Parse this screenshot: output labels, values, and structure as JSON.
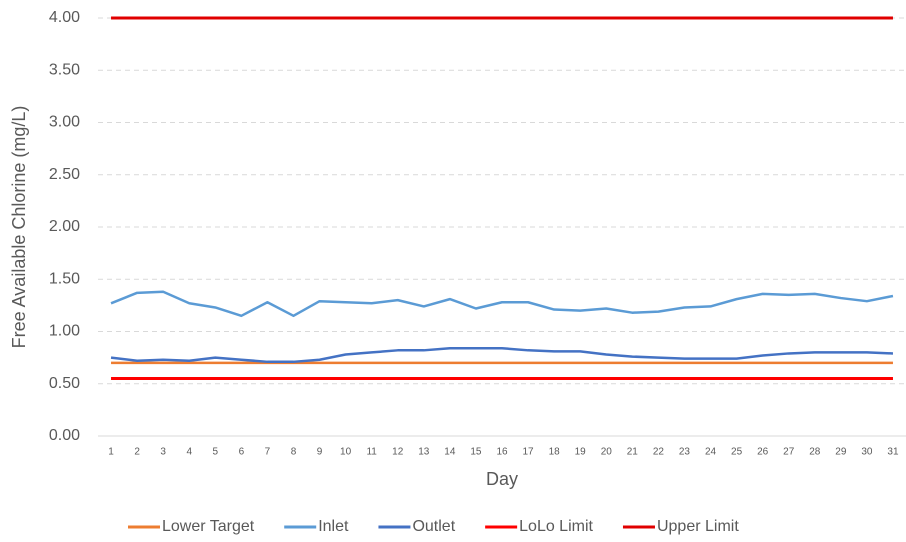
{
  "chart_data": {
    "type": "line",
    "ylabel": "Free Available Chlorine (mg/L)",
    "xlabel": "Day",
    "categories": [
      "1",
      "2",
      "3",
      "4",
      "5",
      "6",
      "7",
      "8",
      "9",
      "10",
      "11",
      "12",
      "13",
      "14",
      "15",
      "16",
      "17",
      "18",
      "19",
      "20",
      "21",
      "22",
      "23",
      "24",
      "25",
      "26",
      "27",
      "28",
      "29",
      "30",
      "31"
    ],
    "ylim": [
      0,
      4
    ],
    "yticks": [
      {
        "value": 0,
        "label": "0.00"
      },
      {
        "value": 0.5,
        "label": "0.50"
      },
      {
        "value": 1,
        "label": "1.00"
      },
      {
        "value": 1.5,
        "label": "1.50"
      },
      {
        "value": 2,
        "label": "2.00"
      },
      {
        "value": 2.5,
        "label": "2.50"
      },
      {
        "value": 3,
        "label": "3.00"
      },
      {
        "value": 3.5,
        "label": "3.50"
      },
      {
        "value": 4,
        "label": "4.00"
      }
    ],
    "grid": true,
    "legend": "bottom",
    "series": [
      {
        "name": "Lower Target",
        "color": "#ed7d31",
        "values": [
          0.7,
          0.7,
          0.7,
          0.7,
          0.7,
          0.7,
          0.7,
          0.7,
          0.7,
          0.7,
          0.7,
          0.7,
          0.7,
          0.7,
          0.7,
          0.7,
          0.7,
          0.7,
          0.7,
          0.7,
          0.7,
          0.7,
          0.7,
          0.7,
          0.7,
          0.7,
          0.7,
          0.7,
          0.7,
          0.7,
          0.7
        ]
      },
      {
        "name": "Inlet",
        "color": "#5b9bd5",
        "values": [
          1.27,
          1.37,
          1.38,
          1.27,
          1.23,
          1.15,
          1.28,
          1.15,
          1.29,
          1.28,
          1.27,
          1.3,
          1.24,
          1.31,
          1.22,
          1.28,
          1.28,
          1.21,
          1.2,
          1.22,
          1.18,
          1.19,
          1.23,
          1.24,
          1.31,
          1.36,
          1.35,
          1.36,
          1.32,
          1.29,
          1.34
        ]
      },
      {
        "name": "Outlet",
        "color": "#4472c4",
        "values": [
          0.75,
          0.72,
          0.73,
          0.72,
          0.75,
          0.73,
          0.71,
          0.71,
          0.73,
          0.78,
          0.8,
          0.82,
          0.82,
          0.84,
          0.84,
          0.84,
          0.82,
          0.81,
          0.81,
          0.78,
          0.76,
          0.75,
          0.74,
          0.74,
          0.74,
          0.77,
          0.79,
          0.8,
          0.8,
          0.8,
          0.79
        ]
      },
      {
        "name": "LoLo Limit",
        "color": "#ff0000",
        "values": [
          0.55,
          0.55,
          0.55,
          0.55,
          0.55,
          0.55,
          0.55,
          0.55,
          0.55,
          0.55,
          0.55,
          0.55,
          0.55,
          0.55,
          0.55,
          0.55,
          0.55,
          0.55,
          0.55,
          0.55,
          0.55,
          0.55,
          0.55,
          0.55,
          0.55,
          0.55,
          0.55,
          0.55,
          0.55,
          0.55,
          0.55
        ]
      },
      {
        "name": "Upper Limit",
        "color": "#e00000",
        "values": [
          4,
          4,
          4,
          4,
          4,
          4,
          4,
          4,
          4,
          4,
          4,
          4,
          4,
          4,
          4,
          4,
          4,
          4,
          4,
          4,
          4,
          4,
          4,
          4,
          4,
          4,
          4,
          4,
          4,
          4,
          4
        ]
      }
    ]
  }
}
